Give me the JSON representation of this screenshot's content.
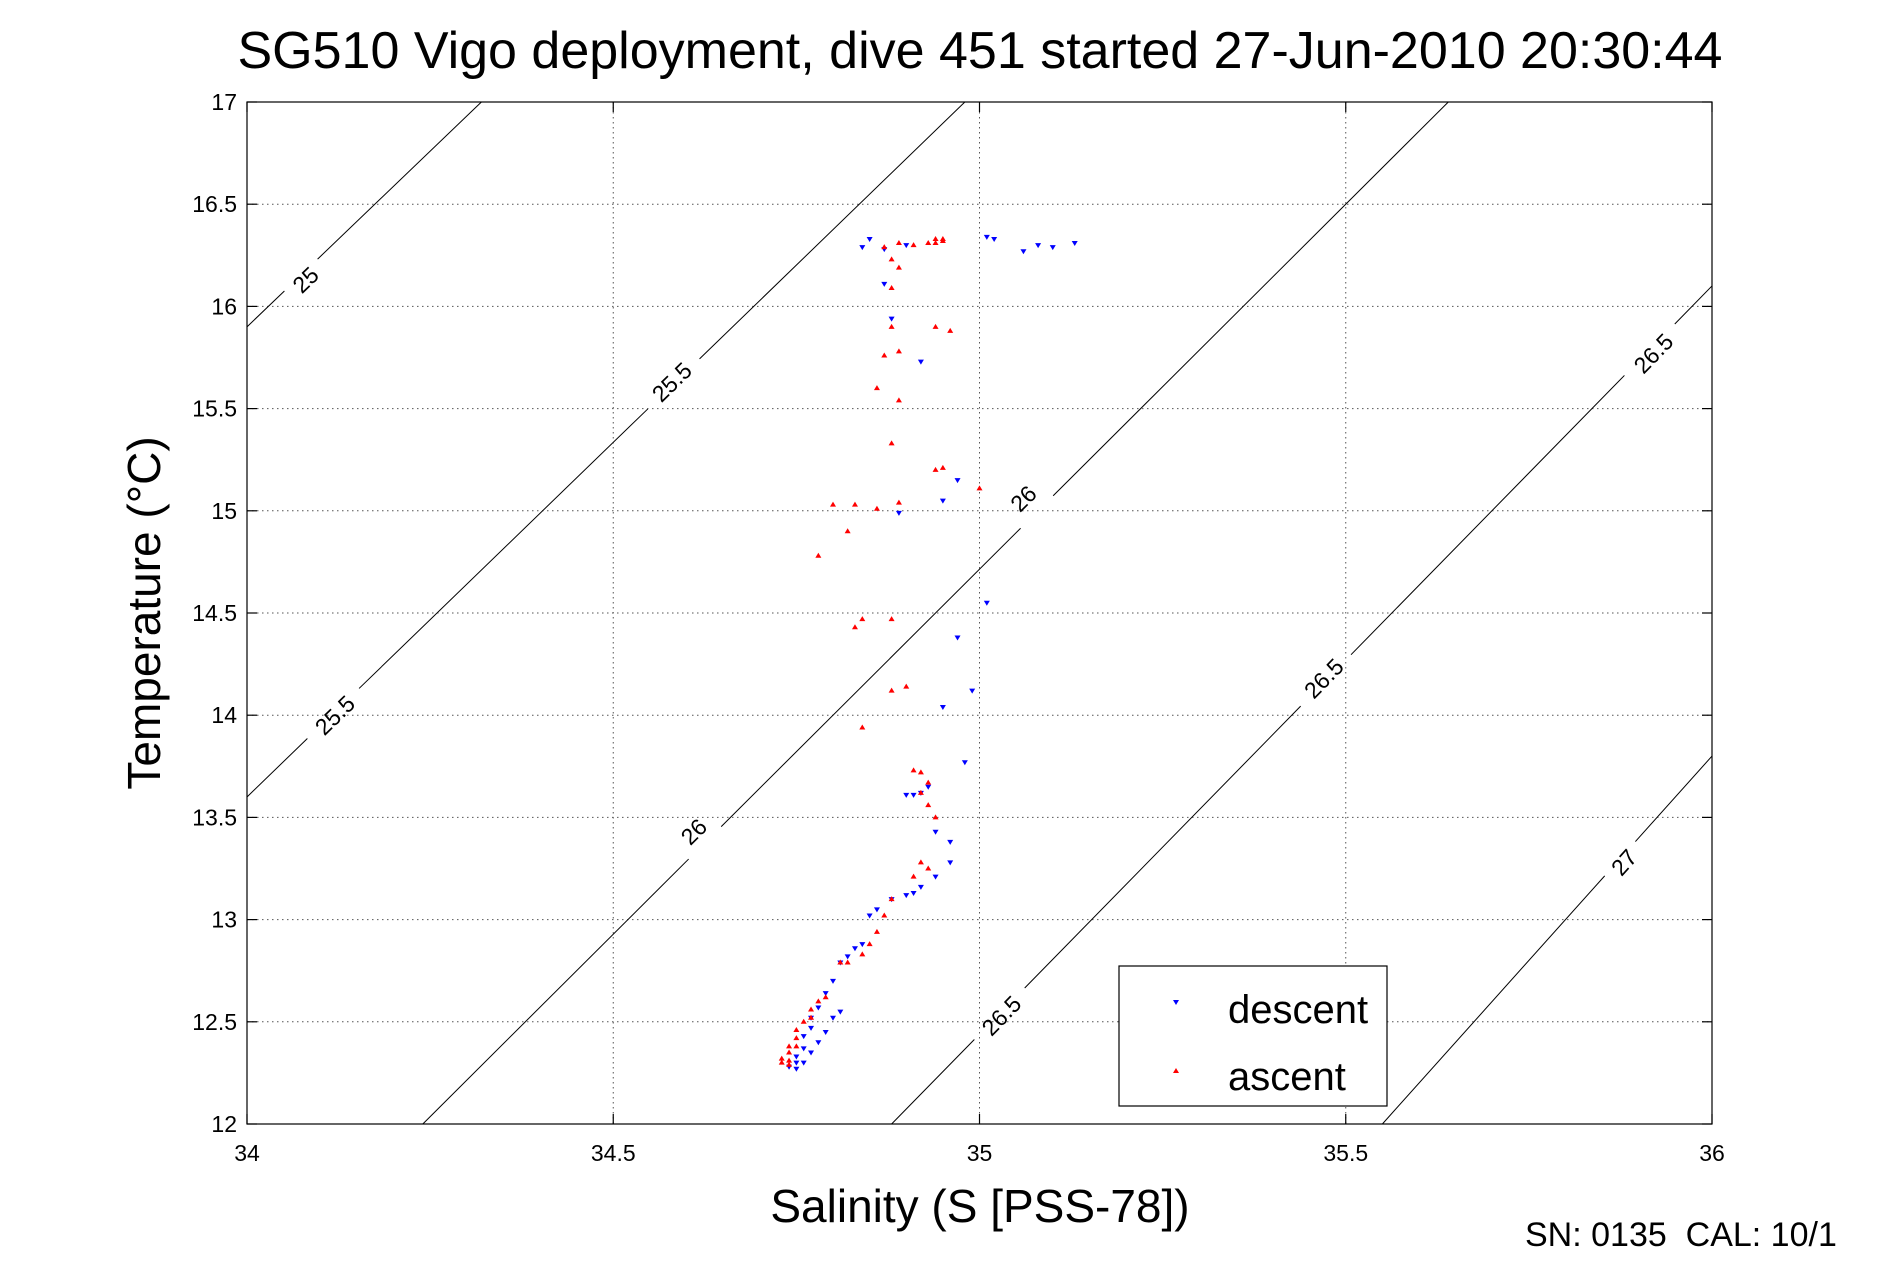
{
  "chart_data": {
    "type": "scatter",
    "title": "SG510 Vigo deployment, dive 451 started 27-Jun-2010 20:30:44",
    "xlabel": "Salinity (S [PSS-78])",
    "ylabel": "Temperature (°C)",
    "xlim": [
      34,
      36
    ],
    "ylim": [
      12,
      17
    ],
    "x_ticks": [
      "34",
      "34.5",
      "35",
      "35.5",
      "36"
    ],
    "y_ticks": [
      "12",
      "12.5",
      "13",
      "13.5",
      "14",
      "14.5",
      "15",
      "15.5",
      "16",
      "16.5",
      "17"
    ],
    "grid": true,
    "legend_position": "bottom-right",
    "footer": "SN: 0135  CAL: 10/1",
    "contours": [
      {
        "level": "25",
        "points": [
          [
            34.0,
            15.9
          ],
          [
            34.32,
            17.0
          ]
        ],
        "labels": [
          [
            34.08,
            16.13
          ]
        ]
      },
      {
        "level": "25.5",
        "points": [
          [
            34.0,
            13.6
          ],
          [
            34.98,
            17.0
          ]
        ],
        "labels": [
          [
            34.12,
            14.0
          ],
          [
            34.58,
            15.63
          ]
        ]
      },
      {
        "level": "26",
        "points": [
          [
            34.24,
            12.0
          ],
          [
            35.64,
            17.0
          ]
        ],
        "labels": [
          [
            34.61,
            13.43
          ],
          [
            35.06,
            15.06
          ]
        ]
      },
      {
        "level": "26.5",
        "points": [
          [
            34.88,
            12.0
          ],
          [
            36.0,
            16.1
          ]
        ],
        "labels": [
          [
            35.03,
            12.53
          ],
          [
            35.47,
            14.18
          ],
          [
            35.92,
            15.77
          ]
        ]
      },
      {
        "level": "27",
        "points": [
          [
            35.55,
            12.0
          ],
          [
            36.0,
            13.8
          ]
        ],
        "labels": [
          [
            35.88,
            13.28
          ]
        ]
      }
    ],
    "series": [
      {
        "name": "descent",
        "color": "#0000ff",
        "marker": "triangle-down",
        "points": [
          [
            34.85,
            16.33
          ],
          [
            34.84,
            16.29
          ],
          [
            34.87,
            16.28
          ],
          [
            34.9,
            16.3
          ],
          [
            35.01,
            16.34
          ],
          [
            35.02,
            16.33
          ],
          [
            35.06,
            16.27
          ],
          [
            35.08,
            16.3
          ],
          [
            35.1,
            16.29
          ],
          [
            35.13,
            16.31
          ],
          [
            34.87,
            16.11
          ],
          [
            34.88,
            15.94
          ],
          [
            34.92,
            15.73
          ],
          [
            34.97,
            15.15
          ],
          [
            34.95,
            15.05
          ],
          [
            34.89,
            14.99
          ],
          [
            35.01,
            14.55
          ],
          [
            34.97,
            14.38
          ],
          [
            34.99,
            14.12
          ],
          [
            34.95,
            14.04
          ],
          [
            34.98,
            13.77
          ],
          [
            34.9,
            13.61
          ],
          [
            34.91,
            13.61
          ],
          [
            34.92,
            13.62
          ],
          [
            34.93,
            13.65
          ],
          [
            34.94,
            13.43
          ],
          [
            34.96,
            13.38
          ],
          [
            34.96,
            13.28
          ],
          [
            34.94,
            13.21
          ],
          [
            34.92,
            13.16
          ],
          [
            34.91,
            13.13
          ],
          [
            34.9,
            13.12
          ],
          [
            34.88,
            13.1
          ],
          [
            34.86,
            13.05
          ],
          [
            34.85,
            13.02
          ],
          [
            34.84,
            12.88
          ],
          [
            34.83,
            12.86
          ],
          [
            34.82,
            12.82
          ],
          [
            34.81,
            12.79
          ],
          [
            34.8,
            12.7
          ],
          [
            34.79,
            12.64
          ],
          [
            34.78,
            12.57
          ],
          [
            34.77,
            12.52
          ],
          [
            34.77,
            12.47
          ],
          [
            34.76,
            12.43
          ],
          [
            34.76,
            12.37
          ],
          [
            34.75,
            12.33
          ],
          [
            34.75,
            12.3
          ],
          [
            34.74,
            12.28
          ],
          [
            34.75,
            12.27
          ],
          [
            34.76,
            12.3
          ],
          [
            34.77,
            12.35
          ],
          [
            34.78,
            12.4
          ],
          [
            34.79,
            12.45
          ],
          [
            34.8,
            12.52
          ],
          [
            34.81,
            12.55
          ]
        ]
      },
      {
        "name": "ascent",
        "color": "#ff0000",
        "marker": "triangle-up",
        "points": [
          [
            34.94,
            16.33
          ],
          [
            34.95,
            16.32
          ],
          [
            34.94,
            16.31
          ],
          [
            34.95,
            16.33
          ],
          [
            34.93,
            16.31
          ],
          [
            34.91,
            16.3
          ],
          [
            34.89,
            16.31
          ],
          [
            34.87,
            16.29
          ],
          [
            34.88,
            16.23
          ],
          [
            34.89,
            16.19
          ],
          [
            34.88,
            16.09
          ],
          [
            34.96,
            15.88
          ],
          [
            34.94,
            15.9
          ],
          [
            34.88,
            15.9
          ],
          [
            34.87,
            15.76
          ],
          [
            34.89,
            15.78
          ],
          [
            34.86,
            15.6
          ],
          [
            34.89,
            15.54
          ],
          [
            34.88,
            15.33
          ],
          [
            34.95,
            15.21
          ],
          [
            34.94,
            15.2
          ],
          [
            35.0,
            15.11
          ],
          [
            34.89,
            15.04
          ],
          [
            34.86,
            15.01
          ],
          [
            34.8,
            15.03
          ],
          [
            34.83,
            15.03
          ],
          [
            34.82,
            14.9
          ],
          [
            34.78,
            14.78
          ],
          [
            34.84,
            14.47
          ],
          [
            34.83,
            14.43
          ],
          [
            34.88,
            14.47
          ],
          [
            34.88,
            14.12
          ],
          [
            34.9,
            14.14
          ],
          [
            34.84,
            13.94
          ],
          [
            34.91,
            13.73
          ],
          [
            34.92,
            13.72
          ],
          [
            34.93,
            13.67
          ],
          [
            34.92,
            13.62
          ],
          [
            34.93,
            13.56
          ],
          [
            34.94,
            13.5
          ],
          [
            34.92,
            13.28
          ],
          [
            34.93,
            13.25
          ],
          [
            34.91,
            13.21
          ],
          [
            34.88,
            13.1
          ],
          [
            34.87,
            13.02
          ],
          [
            34.86,
            12.94
          ],
          [
            34.85,
            12.88
          ],
          [
            34.84,
            12.83
          ],
          [
            34.82,
            12.79
          ],
          [
            34.81,
            12.79
          ],
          [
            34.79,
            12.62
          ],
          [
            34.78,
            12.6
          ],
          [
            34.77,
            12.56
          ],
          [
            34.77,
            12.52
          ],
          [
            34.76,
            12.5
          ],
          [
            34.75,
            12.46
          ],
          [
            34.75,
            12.42
          ],
          [
            34.74,
            12.38
          ],
          [
            34.74,
            12.35
          ],
          [
            34.73,
            12.32
          ],
          [
            34.73,
            12.3
          ],
          [
            34.74,
            12.29
          ],
          [
            34.74,
            12.31
          ],
          [
            34.75,
            12.38
          ]
        ]
      }
    ]
  }
}
